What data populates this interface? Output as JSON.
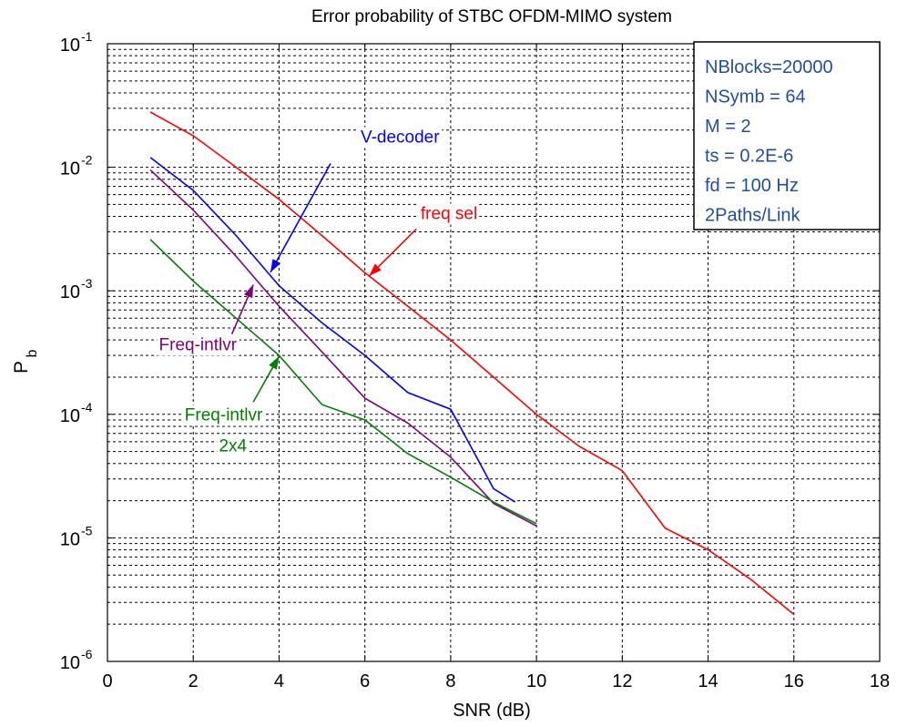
{
  "chart_data": {
    "type": "line",
    "title": "Error probability of STBC OFDM-MIMO system",
    "xlabel": "SNR (dB)",
    "ylabel_main": "P",
    "ylabel_sub": "b",
    "xlim": [
      0,
      18
    ],
    "ylim_exp": [
      -6,
      -1
    ],
    "yscale": "log",
    "grid": true,
    "x_ticks": [
      "0",
      "2",
      "4",
      "6",
      "8",
      "10",
      "12",
      "14",
      "16",
      "18"
    ],
    "y_ticks": [
      {
        "base": "10",
        "exp": "-6"
      },
      {
        "base": "10",
        "exp": "-5"
      },
      {
        "base": "10",
        "exp": "-4"
      },
      {
        "base": "10",
        "exp": "-3"
      },
      {
        "base": "10",
        "exp": "-2"
      },
      {
        "base": "10",
        "exp": "-1"
      }
    ],
    "series": [
      {
        "color": "#ff0000",
        "x": [
          1,
          2,
          3,
          4,
          5,
          6,
          7,
          8,
          9,
          10,
          11,
          12,
          13,
          14,
          15,
          16
        ],
        "y": [
          0.028,
          0.018,
          0.01,
          0.0055,
          0.0028,
          0.0014,
          0.00075,
          0.0004,
          0.0002,
          0.0001,
          5.5e-05,
          3.5e-05,
          1.2e-05,
          8e-06,
          4.6e-06,
          2.4e-06
        ]
      },
      {
        "color": "#0000ff",
        "x": [
          1,
          2,
          3,
          4,
          5,
          6,
          7,
          8,
          9,
          9.5
        ],
        "y": [
          0.012,
          0.0065,
          0.0028,
          0.0011,
          0.00055,
          0.0003,
          0.00015,
          0.00011,
          2.5e-05,
          1.95e-05
        ]
      },
      {
        "color": "#800080",
        "x": [
          1,
          2,
          3,
          4,
          5,
          6,
          7,
          8,
          9,
          10
        ],
        "y": [
          0.0095,
          0.0045,
          0.0019,
          0.00075,
          0.00032,
          0.000135,
          8.5e-05,
          4.5e-05,
          1.9e-05,
          1.25e-05
        ]
      },
      {
        "color": "#008000",
        "x": [
          1,
          2,
          3,
          4,
          5,
          6,
          7,
          8,
          9,
          10
        ],
        "y": [
          0.0026,
          0.0012,
          0.0006,
          0.0003,
          0.00012,
          9e-05,
          4.8e-05,
          3.1e-05,
          1.95e-05,
          1.3e-05
        ]
      }
    ],
    "annotations": [
      {
        "text": "V-decoder",
        "color": "#0000ff",
        "x": 5.9,
        "y_exp": -1.8,
        "arrow_from": [
          5.2,
          -1.97
        ],
        "arrow_to": [
          3.8,
          -2.85
        ]
      },
      {
        "text": "freq sel",
        "color": "#ff0000",
        "x": 7.3,
        "y_exp": -2.42,
        "arrow_from": [
          7.2,
          -2.5
        ],
        "arrow_to": [
          6.1,
          -2.88
        ]
      },
      {
        "text": "Freq-intlvr",
        "color": "#800080",
        "x": 1.2,
        "y_exp": -3.48,
        "arrow_from": [
          2.9,
          -3.35
        ],
        "arrow_to": [
          3.4,
          -2.95
        ]
      },
      {
        "text": "Freq-intlvr",
        "color": "#008000",
        "x": 1.8,
        "y_exp": -4.05,
        "arrow_from": [
          3.4,
          -3.9
        ],
        "arrow_to": [
          4.0,
          -3.53
        ]
      },
      {
        "text": "2x4",
        "color": "#008000",
        "x": 2.6,
        "y_exp": -4.3
      }
    ],
    "infobox": {
      "color": "#1f4e9a",
      "lines": [
        "NBlocks=20000",
        "NSymb = 64",
        "M = 2",
        "ts = 0.2E-6",
        "fd = 100 Hz",
        "2Paths/Link"
      ]
    }
  }
}
